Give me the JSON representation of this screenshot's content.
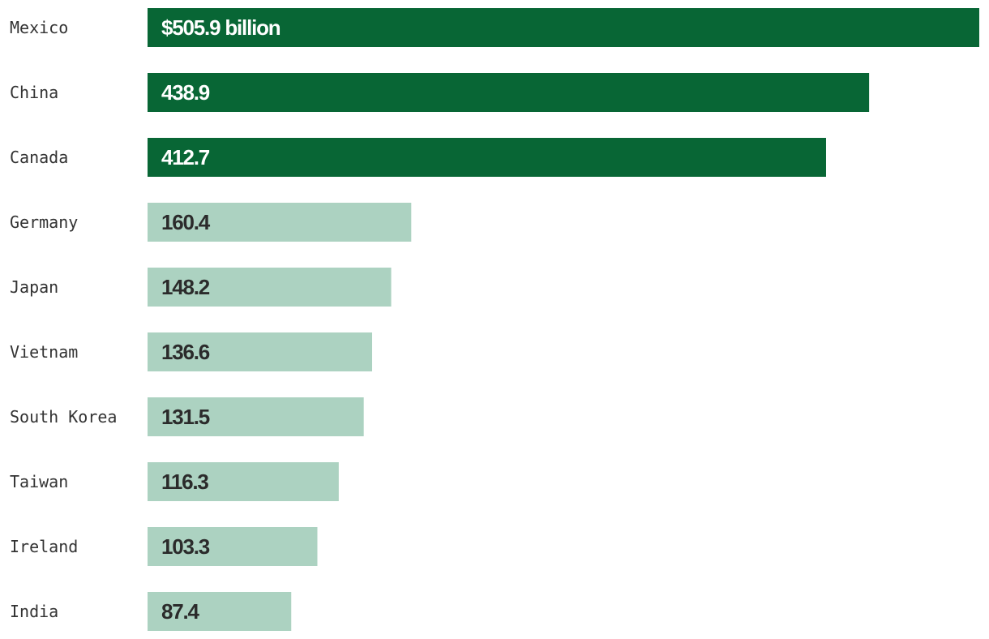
{
  "chart_data": {
    "type": "bar",
    "orientation": "horizontal",
    "categories": [
      "Mexico",
      "China",
      "Canada",
      "Germany",
      "Japan",
      "Vietnam",
      "South Korea",
      "Taiwan",
      "Ireland",
      "India"
    ],
    "values": [
      505.9,
      438.9,
      412.7,
      160.4,
      148.2,
      136.6,
      131.5,
      116.3,
      103.3,
      87.4
    ],
    "value_labels": [
      "$505.9 billion",
      "438.9",
      "412.7",
      "160.4",
      "148.2",
      "136.6",
      "131.5",
      "116.3",
      "103.3",
      "87.4"
    ],
    "highlighted": [
      true,
      true,
      true,
      false,
      false,
      false,
      false,
      false,
      false,
      false
    ],
    "xlim": [
      0,
      505.9
    ],
    "grid": false,
    "legend": "none",
    "colors": {
      "highlight_bar": "#086635",
      "normal_bar": "#acd2c1",
      "highlight_text": "#ffffff",
      "normal_text": "#2b2b2b",
      "category_text": "#333333"
    }
  }
}
